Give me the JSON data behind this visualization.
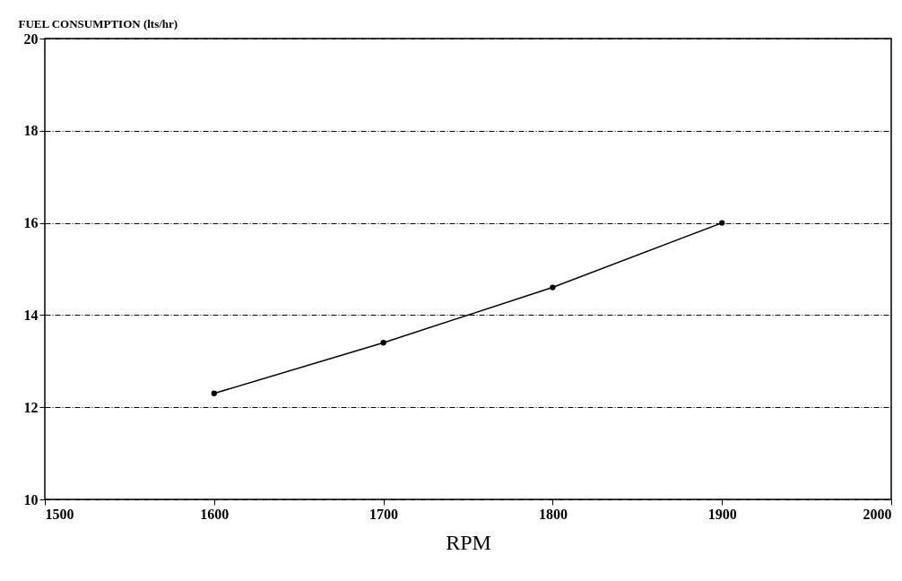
{
  "chart_data": {
    "type": "line",
    "ylabel": "FUEL CONSUMPTION  (lts/hr)",
    "xlabel": "RPM",
    "x": [
      1600,
      1700,
      1800,
      1900
    ],
    "series": [
      {
        "color": "#000000",
        "values": [
          12.3,
          13.4,
          14.6,
          16.0
        ]
      }
    ],
    "xlim": [
      1500,
      2000
    ],
    "xticks": [
      1500,
      1600,
      1700,
      1800,
      1900,
      2000
    ],
    "ylim": [
      10,
      20
    ],
    "yticks": [
      10,
      12,
      14,
      16,
      18,
      20
    ],
    "grid": "y",
    "marker": "circle",
    "line_style": "solid"
  }
}
